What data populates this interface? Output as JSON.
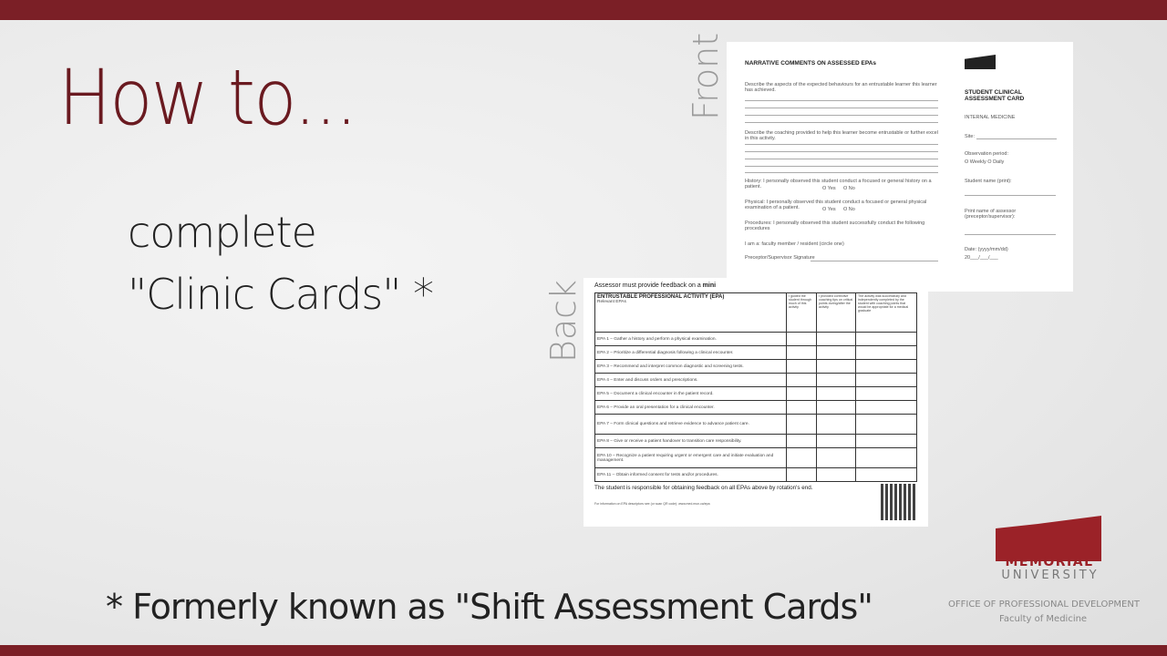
{
  "slide": {
    "title": "How to...",
    "line1": "complete",
    "line2": "\"Clinic Cards\" *",
    "footnote": "* Formerly known as \"Shift Assessment Cards\"",
    "front_label": "Front",
    "back_label": "Back",
    "colors": {
      "accent": "#7b1f26",
      "logo": "#9b2228"
    }
  },
  "front": {
    "heading": "NARRATIVE COMMENTS ON ASSESSED EPAs",
    "q1": "Describe the aspects of the expected behaviours for an entrustable learner this learner has achieved.",
    "q2": "Describe the coaching provided to help this learner become entrustable or further excel in this activity.",
    "history": "History: I personally observed this student conduct a focused or general history on a patient.",
    "physical": "Physical: I personally observed this student conduct a focused or general physical examination of a patient.",
    "yes": "O Yes",
    "no": "O No",
    "procedures": "Procedures: I personally observed this student successfully conduct the following procedures",
    "iam": "I am a: faculty member / resident (circle one)",
    "signature": "Preceptor/Supervisor Signature",
    "logo_text": "MEMORIAL UNIVERSITY Faculty of Medicine",
    "card_title": "STUDENT CLINICAL ASSESSMENT CARD",
    "dept": "INTERNAL MEDICINE",
    "site": "Site:",
    "obs": "Observation period:",
    "obs_opts": "O Weekly O Daily",
    "student": "Student name (print):",
    "assessor": "Print name of assessor (preceptor/supervisor):",
    "date": "Date: (yyyy/mm/dd)",
    "date_fmt": "20___/___/___"
  },
  "back": {
    "intro": "Assessor must provide feedback on a ",
    "intro_bold": "mini",
    "th_title": "ENTRUSTABLE PROFESSIONAL ACTIVITY (EPA)",
    "th_sub": "Relevant EPAs",
    "col1": "I guided the student through much of this activity",
    "col2": "I provided corrective coaching tips on critical points during/after the activity",
    "col3": "The activity was successfully and independently completed by the student with coaching points that would be appropriate for a medical graduate",
    "epas": [
      "EPA 1 – Gather a history and perform a physical examination.",
      "EPA 2 – Prioritize a differential diagnosis following a clinical encounter.",
      "EPA 3 – Recommend and interpret common diagnostic and screening tests.",
      "EPA 4 – Enter and discuss orders and prescriptions.",
      "EPA 5 – Document a clinical encounter in the patient record.",
      "EPA 6 – Provide an oral presentation for a clinical encounter.",
      "EPA 7 – Form clinical questions and retrieve evidence to advance patient care.",
      "EPA 8 – Give or receive a patient handover to transition care responsibility.",
      "EPA 10 – Recognize a patient requiring urgent or emergent care and initiate evaluation and management.",
      "EPA 11 – Obtain informed consent for tests and/or procedures."
    ],
    "responsibility": "The student is responsible for obtaining feedback on all EPAs above by rotation's end.",
    "info": "For information on EPA descriptors see (or scan QR code): www.med.mun.ca/epa"
  },
  "logo": {
    "line1": "MEMORIAL",
    "line2": "UNIVERSITY",
    "office": "OFFICE OF PROFESSIONAL DEVELOPMENT",
    "faculty": "Faculty of Medicine"
  }
}
